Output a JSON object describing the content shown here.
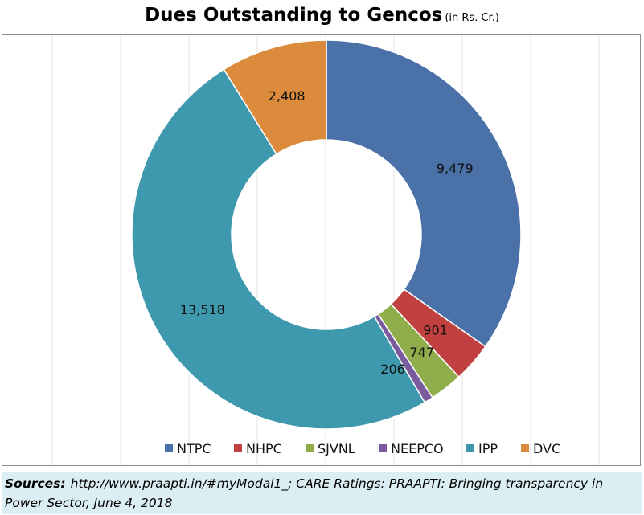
{
  "title": "Dues Outstanding to Gencos",
  "title_unit": "(in Rs. Cr.)",
  "sources": {
    "label": "Sources:",
    "text": "http://www.praapti.in/#myModal1_; CARE Ratings: PRAAPTI: Bringing transparency in Power Sector, June 4, 2018"
  },
  "chart_data": {
    "type": "pie",
    "style": "doughnut",
    "legend_position": "bottom",
    "grid": true,
    "categories": [
      "NTPC",
      "NHPC",
      "SJVNL",
      "NEEPCO",
      "IPP",
      "DVC"
    ],
    "values": [
      9479,
      901,
      747,
      206,
      13518,
      2408
    ],
    "labels": [
      "9,479",
      "901",
      "747",
      "206",
      "13,518",
      "2,408"
    ],
    "colors": [
      "#4a71a8",
      "#c0413f",
      "#8fae4b",
      "#7a5b9e",
      "#3f99ae",
      "#dc8a3c"
    ]
  }
}
